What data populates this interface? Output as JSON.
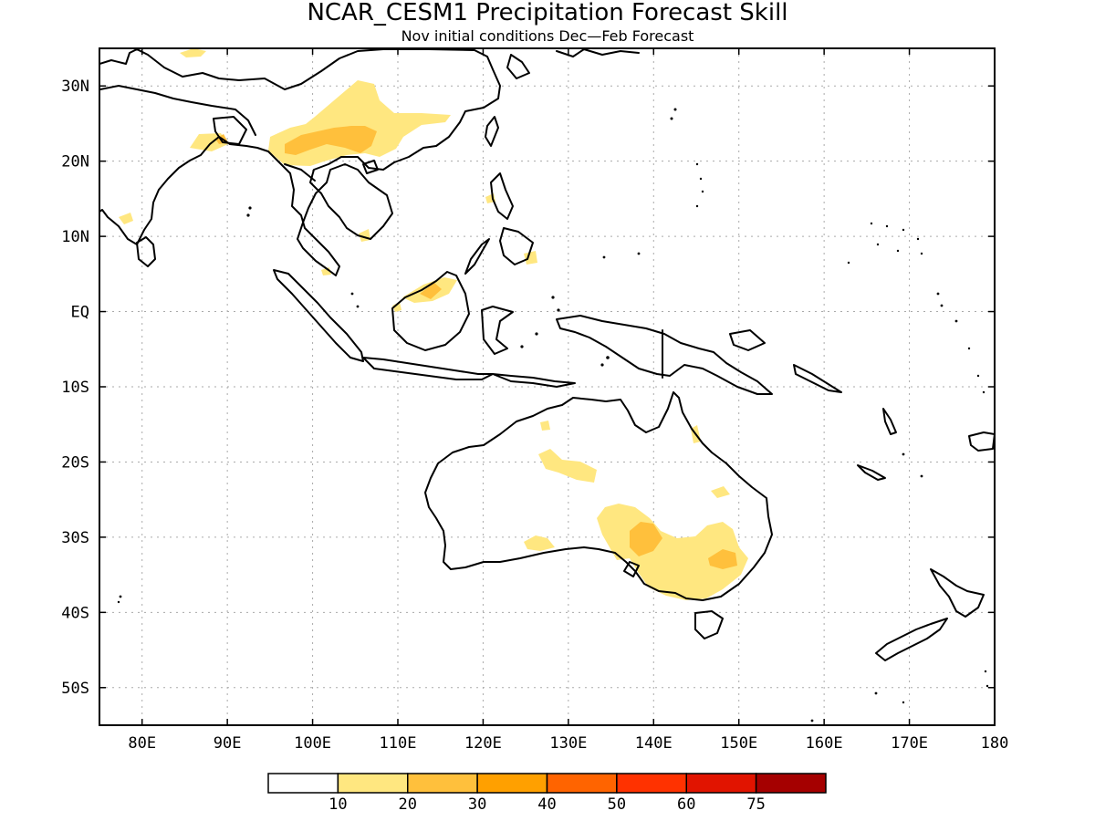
{
  "title": "NCAR_CESM1 Precipitation Forecast Skill",
  "subtitle": "Nov initial conditions  Dec—Feb Forecast",
  "map": {
    "lon_range": [
      75,
      180
    ],
    "lat_range": [
      -55,
      35
    ],
    "lon_ticks": [
      {
        "value": 80,
        "label": "80E"
      },
      {
        "value": 90,
        "label": "90E"
      },
      {
        "value": 100,
        "label": "100E"
      },
      {
        "value": 110,
        "label": "110E"
      },
      {
        "value": 120,
        "label": "120E"
      },
      {
        "value": 130,
        "label": "130E"
      },
      {
        "value": 140,
        "label": "140E"
      },
      {
        "value": 150,
        "label": "150E"
      },
      {
        "value": 160,
        "label": "160E"
      },
      {
        "value": 170,
        "label": "170E"
      },
      {
        "value": 180,
        "label": "180"
      }
    ],
    "lat_ticks": [
      {
        "value": 30,
        "label": "30N"
      },
      {
        "value": 20,
        "label": "20N"
      },
      {
        "value": 10,
        "label": "10N"
      },
      {
        "value": 0,
        "label": "EQ"
      },
      {
        "value": -10,
        "label": "10S"
      },
      {
        "value": -20,
        "label": "20S"
      },
      {
        "value": -30,
        "label": "30S"
      },
      {
        "value": -40,
        "label": "40S"
      },
      {
        "value": -50,
        "label": "50S"
      }
    ],
    "gridlines": true
  },
  "colorbar": {
    "colors": [
      "#ffffff",
      "#ffe780",
      "#ffc03c",
      "#ffa000",
      "#ff6400",
      "#ff3200",
      "#e11400",
      "#a50000"
    ],
    "labels": [
      "10",
      "20",
      "30",
      "40",
      "50",
      "60",
      "75"
    ]
  }
}
